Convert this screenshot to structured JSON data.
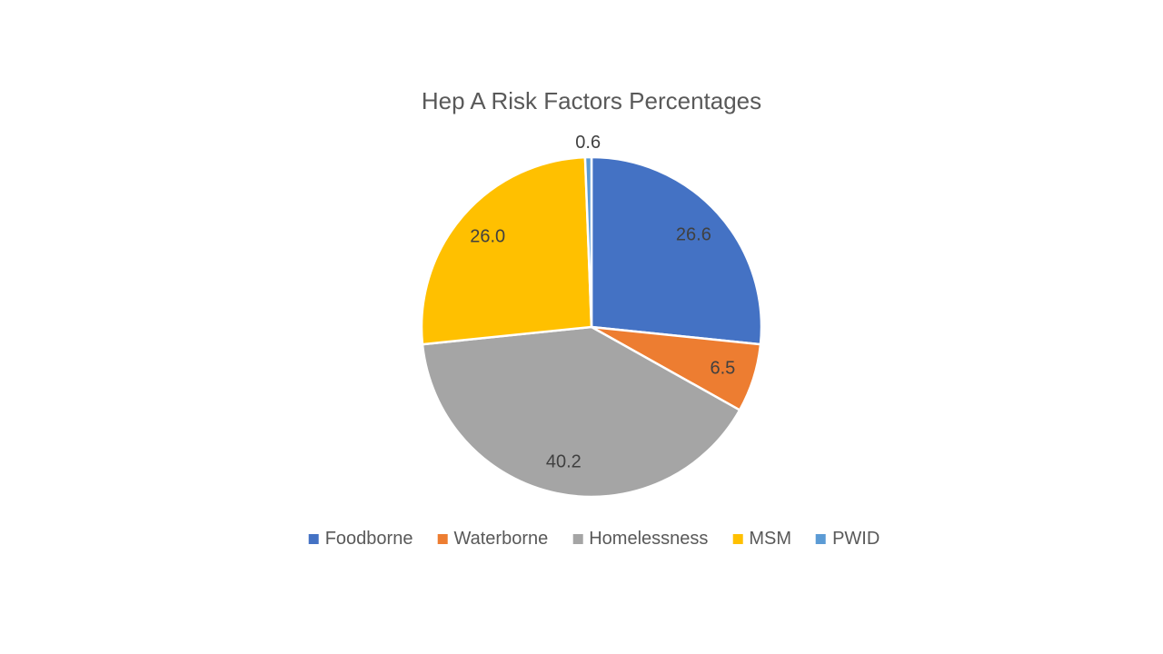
{
  "chart": {
    "title_color": "#595959",
    "data_label_color": "#404040",
    "legend_text_color": "#595959",
    "background_color": "#FFFFFF",
    "slice_border_color": "#FFFFFF"
  },
  "chart_data": {
    "type": "pie",
    "title": "Hep A Risk Factors Percentages",
    "categories": [
      "Foodborne",
      "Waterborne",
      "Homelessness",
      "MSM",
      "PWID"
    ],
    "values": [
      26.6,
      6.5,
      40.2,
      26.0,
      0.6
    ],
    "data_labels": [
      "26.6",
      "6.5",
      "40.2",
      "26.0",
      "0.6"
    ],
    "colors": [
      "#4472C4",
      "#ED7D31",
      "#A5A5A5",
      "#FFC000",
      "#5B9BD5"
    ],
    "start_angle_deg": 0,
    "direction": "clockwise",
    "legend_position": "bottom",
    "legend_entries": [
      "Foodborne",
      "Waterborne",
      "Homelessness",
      "MSM",
      "PWID"
    ]
  }
}
